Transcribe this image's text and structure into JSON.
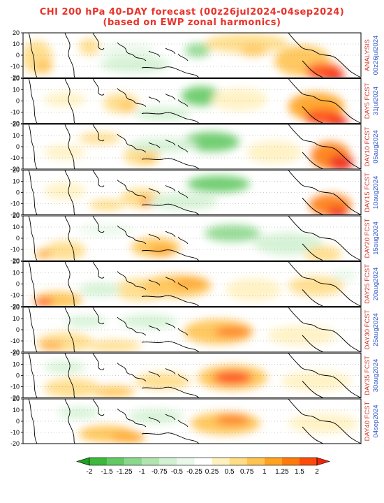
{
  "title": {
    "line1": "CHI 200 hPa 40-DAY forecast (00z26jul2024-04sep2024)",
    "line2": "(based on EWP zonal harmonics)"
  },
  "panels": [
    {
      "label": "ANALYSIS",
      "date": "00z26jul2024"
    },
    {
      "label": "DAY5 FCST",
      "date": "31jul2024"
    },
    {
      "label": "DAY10 FCST",
      "date": "05aug2024"
    },
    {
      "label": "DAY15 FCST",
      "date": "10aug2024"
    },
    {
      "label": "DAY20 FCST",
      "date": "15aug2024"
    },
    {
      "label": "DAY25 FCST",
      "date": "20aug2024"
    },
    {
      "label": "DAY30 FCST",
      "date": "25aug2024"
    },
    {
      "label": "DAY35 FCST",
      "date": "30aug2024"
    },
    {
      "label": "DAY40 FCST",
      "date": "04sep2024"
    }
  ],
  "lat_ticks": [
    "20",
    "10",
    "0",
    "-10",
    "-20"
  ],
  "colorbar": {
    "ticks": [
      "-2",
      "-1.5",
      "-1.25",
      "-1",
      "-0.75",
      "-0.5",
      "-0.25",
      "0.25",
      "0.5",
      "0.75",
      "1",
      "1.25",
      "1.5",
      "2"
    ],
    "colors": [
      "#1fa21f",
      "#3cb93c",
      "#63c963",
      "#8bd78b",
      "#b0e5b0",
      "#d2f1d2",
      "#e9f8e9",
      "#ffffff",
      "#fff1bf",
      "#ffdc85",
      "#ffc350",
      "#ffa21e",
      "#ff7a0a",
      "#ff4a0a",
      "#f0230a"
    ]
  }
}
